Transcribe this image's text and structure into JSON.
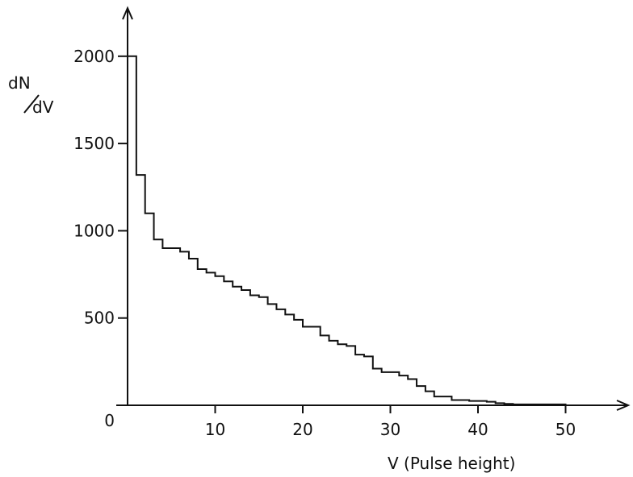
{
  "chart_data": {
    "type": "line",
    "step": true,
    "xlabel": "V (Pulse height)",
    "ylabel_num": "dN",
    "ylabel_den": "dV",
    "xlim": [
      0,
      57
    ],
    "ylim": [
      0,
      2200
    ],
    "x_ticks": [
      {
        "value": 10,
        "label": "10"
      },
      {
        "value": 20,
        "label": "20"
      },
      {
        "value": 30,
        "label": "30"
      },
      {
        "value": 40,
        "label": "40"
      },
      {
        "value": 50,
        "label": "50"
      }
    ],
    "y_ticks": [
      {
        "value": 0,
        "label": "0"
      },
      {
        "value": 500,
        "label": "500"
      },
      {
        "value": 1000,
        "label": "1000"
      },
      {
        "value": 1500,
        "label": "1500"
      },
      {
        "value": 2000,
        "label": "2000"
      }
    ],
    "grid": false,
    "legend": "none",
    "color": "#111111",
    "series": [
      {
        "x": [
          0,
          1,
          2,
          3,
          4,
          5,
          6,
          7,
          8,
          9,
          10,
          11,
          12,
          13,
          14,
          15,
          16,
          17,
          18,
          19,
          20,
          21,
          22,
          23,
          24,
          25,
          26,
          27,
          28,
          29,
          30,
          31,
          32,
          33,
          34,
          35,
          36,
          37,
          38,
          39,
          40,
          41,
          42,
          43,
          44,
          45,
          46,
          47,
          48,
          49,
          50
        ],
        "y": [
          2000,
          1320,
          1100,
          950,
          900,
          900,
          880,
          840,
          780,
          760,
          740,
          710,
          680,
          660,
          630,
          620,
          580,
          550,
          520,
          490,
          450,
          450,
          400,
          370,
          350,
          340,
          290,
          280,
          210,
          190,
          190,
          170,
          150,
          110,
          80,
          50,
          50,
          30,
          30,
          25,
          25,
          20,
          12,
          8,
          5,
          5,
          5,
          5,
          5,
          5,
          0
        ]
      }
    ]
  }
}
